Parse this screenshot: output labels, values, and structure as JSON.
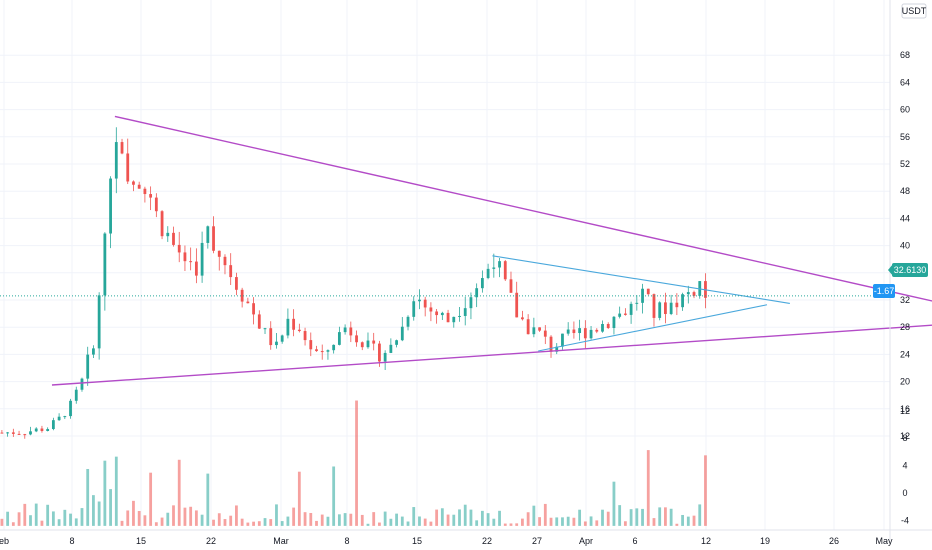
{
  "chart_data": {
    "type": "candlestick",
    "currency_label": "USDT",
    "y_ticks": [
      68,
      64,
      60,
      56,
      52,
      48,
      44,
      40,
      36,
      32,
      28,
      24,
      20,
      16,
      12
    ],
    "volume_ticks": [
      12,
      8,
      4,
      0,
      -4
    ],
    "x_ticks": [
      "eb",
      "8",
      "15",
      "22",
      "Mar",
      "8",
      "15",
      "22",
      "27",
      "Apr",
      "6",
      "12",
      "19",
      "26",
      "May"
    ],
    "price_label": "32.6130",
    "change_label": "-1.67",
    "colors": {
      "up": "#26a69a",
      "down": "#ef5350",
      "trendline_outer": "#b34bc7",
      "trendline_inner": "#4aa8dc",
      "price_badge": "#26a69a",
      "change_badge": "#2196f3"
    },
    "price_anchors": [
      [
        0,
        12.5
      ],
      [
        4,
        12.6
      ],
      [
        8,
        13.2
      ],
      [
        10,
        14.5
      ],
      [
        12,
        16.5
      ],
      [
        14,
        20
      ],
      [
        16,
        26
      ],
      [
        17,
        32
      ],
      [
        18,
        42
      ],
      [
        19,
        50
      ],
      [
        20,
        57
      ],
      [
        21,
        52
      ],
      [
        22,
        48
      ],
      [
        24,
        50
      ],
      [
        26,
        46
      ],
      [
        28,
        43
      ],
      [
        30,
        40
      ],
      [
        32,
        38
      ],
      [
        34,
        37
      ],
      [
        36,
        42
      ],
      [
        38,
        39
      ],
      [
        40,
        36
      ],
      [
        42,
        33
      ],
      [
        44,
        30
      ],
      [
        46,
        27
      ],
      [
        48,
        25
      ],
      [
        50,
        29
      ],
      [
        52,
        28
      ],
      [
        54,
        25
      ],
      [
        56,
        23.5
      ],
      [
        58,
        26
      ],
      [
        60,
        28
      ],
      [
        62,
        27
      ],
      [
        64,
        25
      ],
      [
        66,
        24
      ],
      [
        68,
        25
      ],
      [
        70,
        28
      ],
      [
        72,
        33
      ],
      [
        74,
        31
      ],
      [
        76,
        30
      ],
      [
        78,
        29
      ],
      [
        80,
        31
      ],
      [
        82,
        33
      ],
      [
        84,
        35
      ],
      [
        86,
        38.5
      ],
      [
        88,
        34
      ],
      [
        90,
        30
      ],
      [
        92,
        28
      ],
      [
        94,
        27
      ],
      [
        96,
        25
      ],
      [
        98,
        26
      ],
      [
        100,
        27
      ],
      [
        102,
        27.5
      ],
      [
        104,
        28
      ],
      [
        106,
        29
      ],
      [
        108,
        30
      ],
      [
        110,
        31
      ],
      [
        112,
        33
      ],
      [
        114,
        30
      ],
      [
        116,
        31
      ],
      [
        118,
        32
      ],
      [
        120,
        33
      ],
      [
        122,
        34.5
      ],
      [
        123,
        32.6
      ]
    ],
    "trendlines": [
      {
        "color": "outer",
        "from": [
          20,
          59
        ],
        "to": [
          170,
          30.5
        ]
      },
      {
        "color": "outer",
        "from": [
          9,
          19.5
        ],
        "to": [
          170,
          28.7
        ]
      },
      {
        "color": "inner",
        "from": [
          86,
          38.5
        ],
        "to": [
          138,
          31.5
        ]
      },
      {
        "color": "inner",
        "from": [
          94,
          24.5
        ],
        "to": [
          134,
          31.3
        ]
      }
    ]
  }
}
